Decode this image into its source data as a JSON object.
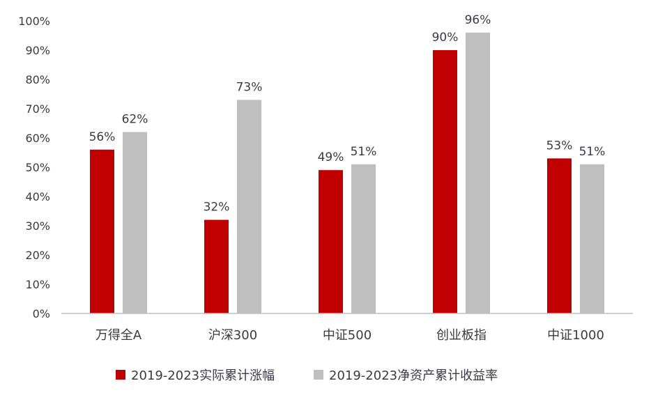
{
  "chart_data": {
    "type": "bar",
    "title": "",
    "xlabel": "",
    "ylabel": "",
    "ylim": [
      0,
      100
    ],
    "yticks": [
      "0%",
      "10%",
      "20%",
      "30%",
      "40%",
      "50%",
      "60%",
      "70%",
      "80%",
      "90%",
      "100%"
    ],
    "grid": false,
    "legend_placement": "bottom",
    "categories": [
      "万得全A",
      "沪深300",
      "中证500",
      "创业板指",
      "中证1000"
    ],
    "series": [
      {
        "name": "2019-2023实际累计涨幅",
        "color": "#C00000",
        "values": [
          56,
          32,
          49,
          90,
          53
        ],
        "labels": [
          "56%",
          "32%",
          "49%",
          "90%",
          "53%"
        ]
      },
      {
        "name": "2019-2023净资产累计收益率",
        "color": "#BFBFBF",
        "values": [
          62,
          73,
          51,
          96,
          51
        ],
        "labels": [
          "62%",
          "73%",
          "51%",
          "96%",
          "51%"
        ]
      }
    ]
  }
}
